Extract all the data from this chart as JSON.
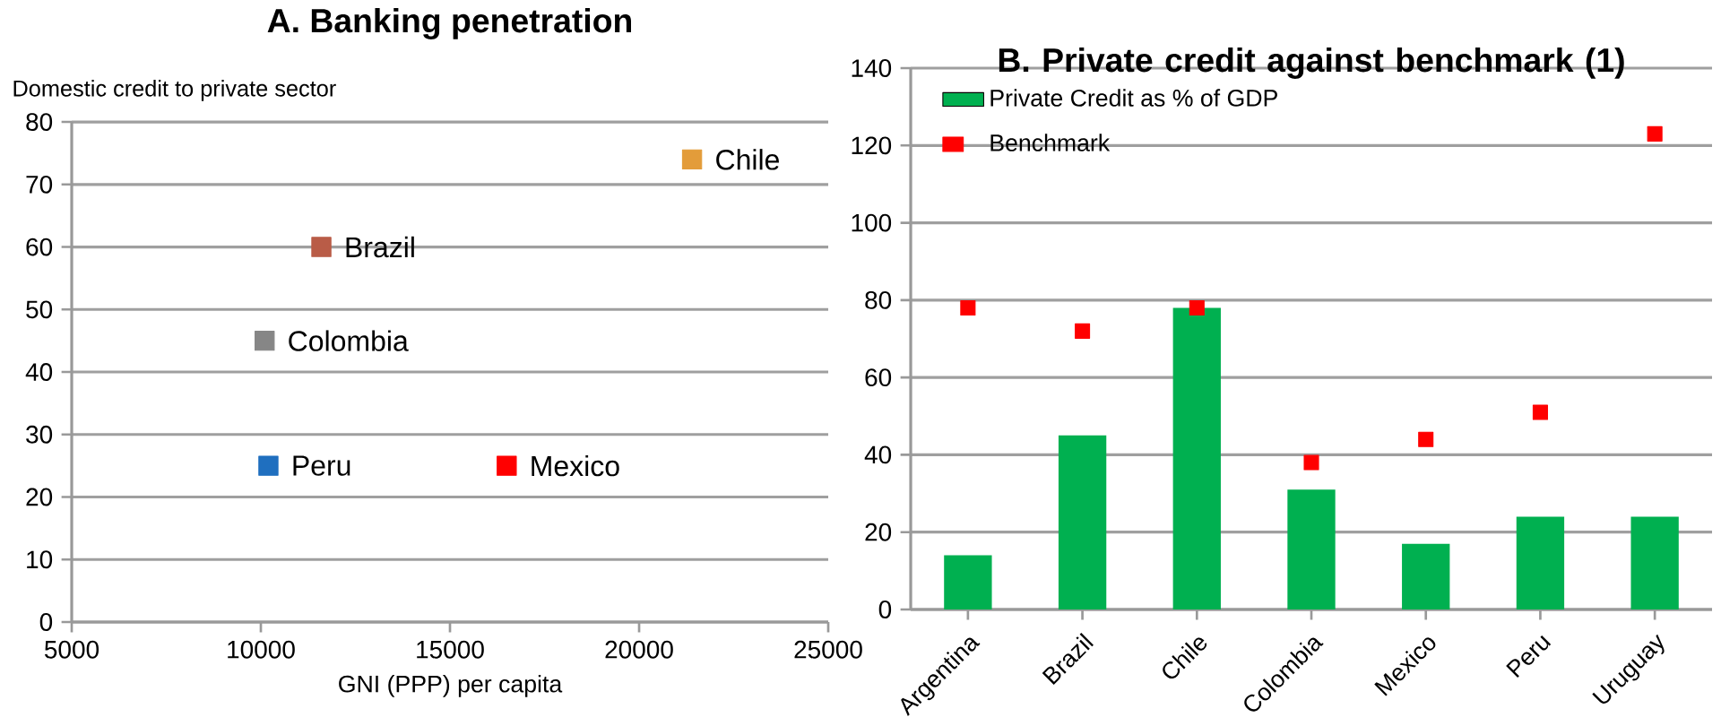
{
  "chart_data": [
    {
      "type": "scatter",
      "title": "A. Banking penetration",
      "xlabel": "GNI (PPP) per capita",
      "ylabel": "Domestic credit to private sector",
      "xlim": [
        5000,
        25000
      ],
      "ylim": [
        0,
        80
      ],
      "xticks": [
        5000,
        10000,
        15000,
        20000,
        25000
      ],
      "yticks": [
        0,
        10,
        20,
        30,
        40,
        50,
        60,
        70,
        80
      ],
      "grid": "y",
      "marker": "square",
      "series": [
        {
          "name": "Chile",
          "color": "#e39c3a",
          "x": [
            21400
          ],
          "values": [
            74
          ]
        },
        {
          "name": "Brazil",
          "color": "#b95c47",
          "x": [
            11600
          ],
          "values": [
            60
          ]
        },
        {
          "name": "Colombia",
          "color": "#868686",
          "x": [
            10100
          ],
          "values": [
            45
          ]
        },
        {
          "name": "Peru",
          "color": "#1f6fbf",
          "x": [
            10200
          ],
          "values": [
            25
          ]
        },
        {
          "name": "Mexico",
          "color": "#ff0000",
          "x": [
            16500
          ],
          "values": [
            25
          ]
        }
      ]
    },
    {
      "type": "bar",
      "title": "B. Private credit against benchmark (1)",
      "categories": [
        "Argentina",
        "Brazil",
        "Chile",
        "Colombia",
        "Mexico",
        "Peru",
        "Uruguay"
      ],
      "ylim": [
        0,
        140
      ],
      "yticks": [
        0,
        20,
        40,
        60,
        80,
        100,
        120,
        140
      ],
      "grid": "y",
      "legend": "top left",
      "series": [
        {
          "name": "Private Credit as % of GDP",
          "color": "#00b050",
          "values": [
            14,
            45,
            78,
            31,
            17,
            24,
            24
          ]
        },
        {
          "name": "Benchmark",
          "type": "scatter",
          "marker": "square",
          "color": "#ff0000",
          "values": [
            78,
            72,
            78,
            38,
            44,
            51,
            123
          ]
        }
      ]
    }
  ]
}
